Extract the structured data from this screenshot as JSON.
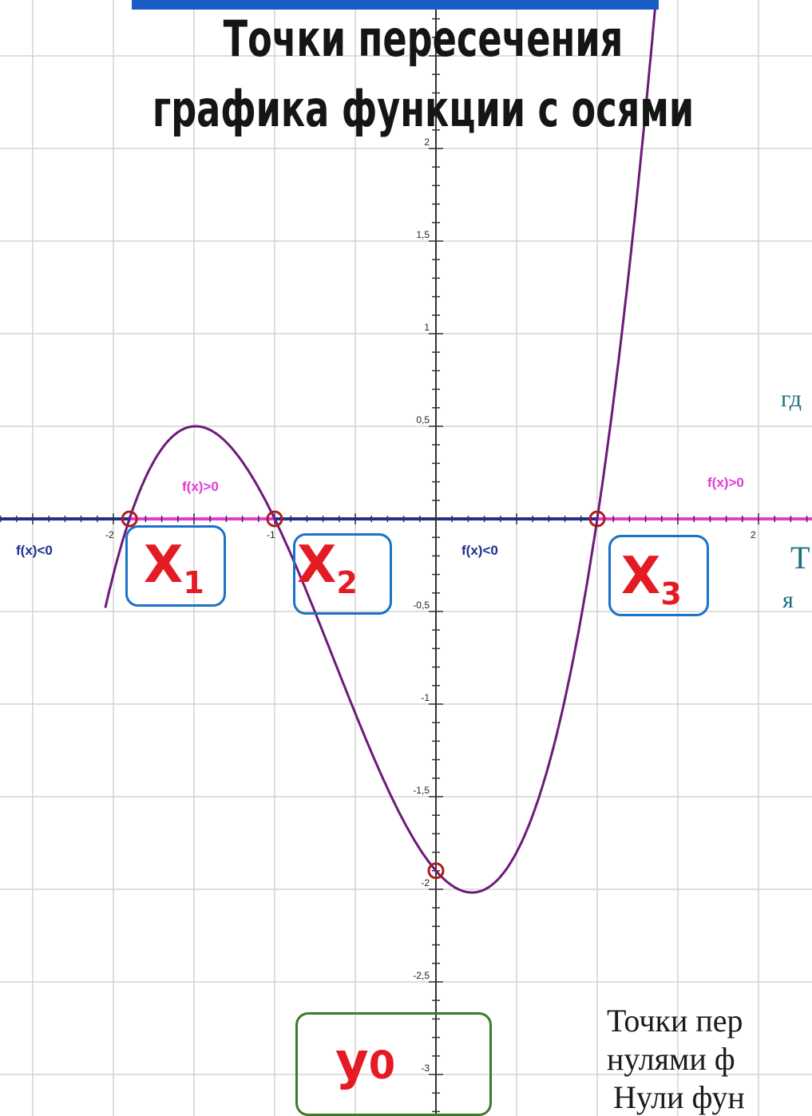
{
  "title": {
    "line1": "Точки пересечения",
    "line2": "графика функции с осями"
  },
  "colors": {
    "curve": "#6d1a7a",
    "axis_negative": "#1f2f8f",
    "axis_positive": "#e23bd6",
    "root_box": "#1b72c6",
    "y_box": "#3d7a2a",
    "label_red": "#e51b24",
    "grid": "#d3d3d3",
    "title_bar": "#1a5dc8"
  },
  "labels": {
    "x1": "X",
    "x1_sub": "1",
    "x2": "X",
    "x2_sub": "2",
    "x3": "X",
    "x3_sub": "3",
    "y0": "y",
    "y0_sub": "0"
  },
  "sign_labels": {
    "pos1": "f(x)>0",
    "pos2": "f(x)>0",
    "neg1": "f(x)<0",
    "neg2": "f(x)<0"
  },
  "side_text": {
    "t1": "гд",
    "t2": "Т",
    "t3": "я",
    "b1": "Точки пер",
    "b2": "нулями ф",
    "b3": "Нули фун"
  },
  "chart_data": {
    "type": "line",
    "function": "f(x) = (x + 1.9)(x + 1)(x - 1)",
    "x_ticks": [
      {
        "v": -2,
        "label": "-2"
      },
      {
        "v": -1,
        "label": "-1"
      },
      {
        "v": 2,
        "label": "2"
      }
    ],
    "y_ticks": [
      {
        "v": 2,
        "label": "2"
      },
      {
        "v": 1.5,
        "label": "1,5"
      },
      {
        "v": 1,
        "label": "1"
      },
      {
        "v": 0.5,
        "label": "0,5"
      },
      {
        "v": -0.5,
        "label": "-0,5"
      },
      {
        "v": -1,
        "label": "-1"
      },
      {
        "v": -1.5,
        "label": "-1,5"
      },
      {
        "v": -2,
        "label": "-2"
      },
      {
        "v": -2.5,
        "label": "-2,5"
      },
      {
        "v": -3,
        "label": "-3"
      }
    ],
    "roots": [
      -1.9,
      -1,
      1
    ],
    "y_intercept": -1.9,
    "xlim": [
      -2.8,
      2.4
    ],
    "ylim": [
      -3.3,
      2.7
    ],
    "grid": true,
    "sign_intervals": [
      {
        "from": -2.8,
        "to": -1.9,
        "sign": "negative"
      },
      {
        "from": -1.9,
        "to": -1,
        "sign": "positive"
      },
      {
        "from": -1,
        "to": 1,
        "sign": "negative"
      },
      {
        "from": 1,
        "to": 2.4,
        "sign": "positive"
      }
    ]
  }
}
